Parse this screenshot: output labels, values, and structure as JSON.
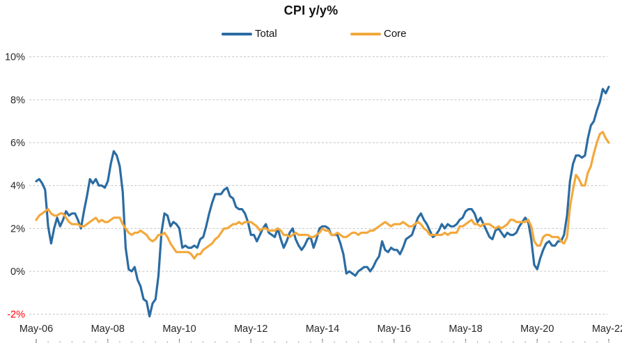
{
  "chart_data": {
    "type": "line",
    "title": "CPI y/y%",
    "xlabel": "",
    "ylabel": "",
    "x_start": "May-06",
    "x_end": "May-22",
    "frequency": "monthly",
    "x_tick_labels": [
      "May-06",
      "May-08",
      "May-10",
      "May-12",
      "May-14",
      "May-16",
      "May-18",
      "May-20",
      "May-22"
    ],
    "y_ticks": [
      10,
      8,
      6,
      4,
      2,
      0,
      -2
    ],
    "y_tick_labels": [
      "10%",
      "8%",
      "6%",
      "4%",
      "2%",
      "0%",
      "-2%"
    ],
    "ylim": [
      -2,
      10
    ],
    "grid": "horizontal-dashed",
    "grid_color": "#c3c3c3",
    "label_color": "#262626",
    "negative_label_color": "#ff0000",
    "tick_color": "#7f7f7f",
    "legend_position": "top",
    "series": [
      {
        "name": "Total",
        "color": "#2b6ca3",
        "values": [
          4.2,
          4.3,
          4.1,
          3.8,
          2.1,
          1.3,
          2.0,
          2.5,
          2.1,
          2.4,
          2.8,
          2.6,
          2.7,
          2.7,
          2.4,
          2.0,
          2.8,
          3.5,
          4.3,
          4.1,
          4.3,
          4.0,
          4.0,
          3.9,
          4.2,
          5.0,
          5.6,
          5.4,
          4.9,
          3.7,
          1.1,
          0.1,
          0.0,
          0.2,
          -0.4,
          -0.7,
          -1.3,
          -1.4,
          -2.1,
          -1.5,
          -1.3,
          -0.2,
          1.8,
          2.7,
          2.6,
          2.1,
          2.3,
          2.2,
          2.0,
          1.1,
          1.2,
          1.1,
          1.1,
          1.2,
          1.1,
          1.5,
          1.6,
          2.1,
          2.7,
          3.2,
          3.6,
          3.6,
          3.6,
          3.8,
          3.9,
          3.5,
          3.4,
          3.0,
          2.9,
          2.9,
          2.7,
          2.3,
          1.7,
          1.7,
          1.4,
          1.7,
          2.0,
          2.2,
          1.8,
          1.7,
          1.6,
          2.0,
          1.5,
          1.1,
          1.4,
          1.8,
          2.0,
          1.5,
          1.2,
          1.0,
          1.2,
          1.5,
          1.6,
          1.1,
          1.5,
          2.0,
          2.1,
          2.1,
          2.0,
          1.7,
          1.7,
          1.7,
          1.3,
          0.8,
          -0.1,
          0.0,
          -0.1,
          -0.2,
          0.0,
          0.1,
          0.2,
          0.2,
          0.0,
          0.2,
          0.5,
          0.7,
          1.4,
          1.0,
          0.9,
          1.1,
          1.0,
          1.0,
          0.8,
          1.1,
          1.5,
          1.6,
          1.7,
          2.1,
          2.5,
          2.7,
          2.4,
          2.2,
          1.9,
          1.6,
          1.7,
          1.9,
          2.2,
          2.0,
          2.2,
          2.1,
          2.1,
          2.2,
          2.4,
          2.5,
          2.8,
          2.9,
          2.9,
          2.7,
          2.3,
          2.5,
          2.2,
          1.9,
          1.6,
          1.5,
          1.9,
          2.0,
          1.8,
          1.6,
          1.8,
          1.7,
          1.7,
          1.8,
          2.1,
          2.3,
          2.5,
          2.3,
          1.5,
          0.3,
          0.1,
          0.6,
          1.0,
          1.3,
          1.4,
          1.2,
          1.2,
          1.4,
          1.4,
          1.7,
          2.6,
          4.2,
          5.0,
          5.4,
          5.4,
          5.3,
          5.4,
          6.2,
          6.8,
          7.0,
          7.5,
          7.9,
          8.5,
          8.3,
          8.6
        ]
      },
      {
        "name": "Core",
        "color": "#f3a83b",
        "values": [
          2.4,
          2.6,
          2.7,
          2.8,
          2.9,
          2.7,
          2.6,
          2.6,
          2.7,
          2.7,
          2.5,
          2.3,
          2.2,
          2.2,
          2.2,
          2.1,
          2.1,
          2.2,
          2.3,
          2.4,
          2.5,
          2.3,
          2.4,
          2.3,
          2.3,
          2.4,
          2.5,
          2.5,
          2.5,
          2.2,
          2.0,
          1.8,
          1.7,
          1.8,
          1.8,
          1.9,
          1.8,
          1.7,
          1.5,
          1.4,
          1.5,
          1.7,
          1.7,
          1.8,
          1.6,
          1.3,
          1.1,
          0.9,
          0.9,
          0.9,
          0.9,
          0.9,
          0.8,
          0.6,
          0.8,
          0.8,
          1.0,
          1.1,
          1.2,
          1.3,
          1.5,
          1.6,
          1.8,
          2.0,
          2.0,
          2.1,
          2.2,
          2.2,
          2.3,
          2.2,
          2.3,
          2.3,
          2.3,
          2.2,
          2.1,
          1.9,
          2.0,
          2.0,
          1.9,
          1.9,
          1.9,
          2.0,
          1.9,
          1.7,
          1.7,
          1.6,
          1.7,
          1.8,
          1.7,
          1.7,
          1.7,
          1.7,
          1.6,
          1.6,
          1.7,
          1.8,
          2.0,
          1.9,
          1.9,
          1.7,
          1.7,
          1.8,
          1.7,
          1.6,
          1.6,
          1.7,
          1.8,
          1.8,
          1.7,
          1.8,
          1.8,
          1.8,
          1.9,
          1.9,
          2.0,
          2.1,
          2.2,
          2.3,
          2.2,
          2.1,
          2.2,
          2.2,
          2.2,
          2.3,
          2.2,
          2.1,
          2.1,
          2.2,
          2.3,
          2.2,
          2.0,
          1.9,
          1.7,
          1.7,
          1.7,
          1.7,
          1.7,
          1.8,
          1.7,
          1.8,
          1.8,
          1.8,
          2.1,
          2.1,
          2.2,
          2.3,
          2.4,
          2.2,
          2.2,
          2.1,
          2.2,
          2.2,
          2.2,
          2.1,
          2.0,
          2.1,
          2.0,
          2.1,
          2.2,
          2.4,
          2.4,
          2.3,
          2.3,
          2.3,
          2.3,
          2.4,
          2.1,
          1.4,
          1.2,
          1.2,
          1.6,
          1.7,
          1.7,
          1.6,
          1.6,
          1.6,
          1.4,
          1.3,
          1.6,
          3.0,
          3.8,
          4.5,
          4.3,
          4.0,
          4.0,
          4.6,
          4.9,
          5.5,
          6.0,
          6.4,
          6.5,
          6.2,
          6.0
        ]
      }
    ]
  }
}
